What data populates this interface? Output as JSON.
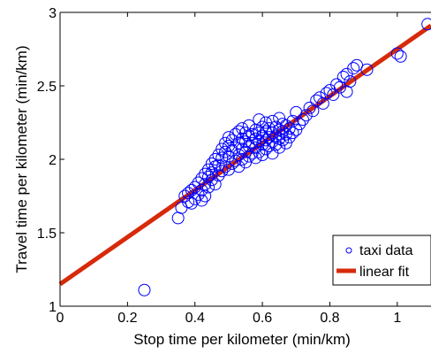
{
  "chart_data": {
    "type": "scatter",
    "xlabel": "Stop time per kilometer (min/km)",
    "ylabel": "Travel time per kilometer (min/km)",
    "xlim": [
      0,
      1.1
    ],
    "ylim": [
      1,
      3
    ],
    "xticks": [
      0,
      0.2,
      0.4,
      0.6,
      0.8,
      1
    ],
    "xtick_labels": [
      "0",
      "0.2",
      "0.4",
      "0.6",
      "0.8",
      "1"
    ],
    "yticks": [
      1,
      1.5,
      2,
      2.5,
      3
    ],
    "ytick_labels": [
      "1",
      "1.5",
      "2",
      "2.5",
      "3"
    ],
    "grid": false,
    "legend_position": "bottom-right",
    "series": [
      {
        "name": "taxi data",
        "type": "scatter",
        "color": "#0000ff",
        "marker": "open-circle",
        "points": [
          [
            0.25,
            1.11
          ],
          [
            0.35,
            1.6
          ],
          [
            0.36,
            1.67
          ],
          [
            0.37,
            1.75
          ],
          [
            0.38,
            1.71
          ],
          [
            0.38,
            1.77
          ],
          [
            0.39,
            1.7
          ],
          [
            0.39,
            1.79
          ],
          [
            0.4,
            1.73
          ],
          [
            0.4,
            1.81
          ],
          [
            0.41,
            1.76
          ],
          [
            0.41,
            1.84
          ],
          [
            0.42,
            1.72
          ],
          [
            0.42,
            1.79
          ],
          [
            0.42,
            1.87
          ],
          [
            0.43,
            1.75
          ],
          [
            0.43,
            1.83
          ],
          [
            0.43,
            1.9
          ],
          [
            0.44,
            1.81
          ],
          [
            0.44,
            1.88
          ],
          [
            0.44,
            1.93
          ],
          [
            0.45,
            1.86
          ],
          [
            0.45,
            1.91
          ],
          [
            0.45,
            1.97
          ],
          [
            0.46,
            1.83
          ],
          [
            0.46,
            1.95
          ],
          [
            0.46,
            2.0
          ],
          [
            0.47,
            1.89
          ],
          [
            0.47,
            1.96
          ],
          [
            0.47,
            2.03
          ],
          [
            0.48,
            1.92
          ],
          [
            0.48,
            2.01
          ],
          [
            0.48,
            2.07
          ],
          [
            0.49,
            1.95
          ],
          [
            0.49,
            2.05
          ],
          [
            0.49,
            2.11
          ],
          [
            0.5,
            1.93
          ],
          [
            0.5,
            2.02
          ],
          [
            0.5,
            2.09
          ],
          [
            0.5,
            2.15
          ],
          [
            0.51,
            1.97
          ],
          [
            0.51,
            2.06
          ],
          [
            0.51,
            2.13
          ],
          [
            0.52,
            1.99
          ],
          [
            0.52,
            2.08
          ],
          [
            0.52,
            2.17
          ],
          [
            0.53,
            1.95
          ],
          [
            0.53,
            2.03
          ],
          [
            0.53,
            2.11
          ],
          [
            0.53,
            2.19
          ],
          [
            0.54,
            2.0
          ],
          [
            0.54,
            2.07
          ],
          [
            0.54,
            2.14
          ],
          [
            0.54,
            2.21
          ],
          [
            0.55,
            1.98
          ],
          [
            0.55,
            2.05
          ],
          [
            0.55,
            2.12
          ],
          [
            0.55,
            2.18
          ],
          [
            0.56,
            2.02
          ],
          [
            0.56,
            2.09
          ],
          [
            0.56,
            2.16
          ],
          [
            0.56,
            2.23
          ],
          [
            0.57,
            2.04
          ],
          [
            0.57,
            2.11
          ],
          [
            0.57,
            2.17
          ],
          [
            0.58,
            2.01
          ],
          [
            0.58,
            2.08
          ],
          [
            0.58,
            2.14
          ],
          [
            0.58,
            2.2
          ],
          [
            0.59,
            2.05
          ],
          [
            0.59,
            2.12
          ],
          [
            0.59,
            2.18
          ],
          [
            0.59,
            2.27
          ],
          [
            0.6,
            2.03
          ],
          [
            0.6,
            2.1
          ],
          [
            0.6,
            2.16
          ],
          [
            0.6,
            2.22
          ],
          [
            0.61,
            2.07
          ],
          [
            0.61,
            2.13
          ],
          [
            0.61,
            2.19
          ],
          [
            0.61,
            2.25
          ],
          [
            0.62,
            2.09
          ],
          [
            0.62,
            2.15
          ],
          [
            0.62,
            2.21
          ],
          [
            0.63,
            2.04
          ],
          [
            0.63,
            2.12
          ],
          [
            0.63,
            2.18
          ],
          [
            0.63,
            2.26
          ],
          [
            0.64,
            2.1
          ],
          [
            0.64,
            2.16
          ],
          [
            0.64,
            2.22
          ],
          [
            0.65,
            2.08
          ],
          [
            0.65,
            2.14
          ],
          [
            0.65,
            2.2
          ],
          [
            0.65,
            2.28
          ],
          [
            0.66,
            2.13
          ],
          [
            0.66,
            2.19
          ],
          [
            0.66,
            2.24
          ],
          [
            0.67,
            2.11
          ],
          [
            0.67,
            2.17
          ],
          [
            0.67,
            2.23
          ],
          [
            0.68,
            2.15
          ],
          [
            0.68,
            2.21
          ],
          [
            0.69,
            2.18
          ],
          [
            0.69,
            2.26
          ],
          [
            0.7,
            2.2
          ],
          [
            0.7,
            2.32
          ],
          [
            0.71,
            2.24
          ],
          [
            0.72,
            2.27
          ],
          [
            0.73,
            2.3
          ],
          [
            0.74,
            2.35
          ],
          [
            0.75,
            2.33
          ],
          [
            0.76,
            2.4
          ],
          [
            0.77,
            2.42
          ],
          [
            0.78,
            2.38
          ],
          [
            0.79,
            2.45
          ],
          [
            0.8,
            2.47
          ],
          [
            0.81,
            2.44
          ],
          [
            0.82,
            2.51
          ],
          [
            0.83,
            2.49
          ],
          [
            0.84,
            2.56
          ],
          [
            0.85,
            2.58
          ],
          [
            0.85,
            2.46
          ],
          [
            0.86,
            2.53
          ],
          [
            0.87,
            2.62
          ],
          [
            0.88,
            2.64
          ],
          [
            0.91,
            2.61
          ],
          [
            1.0,
            2.72
          ],
          [
            1.01,
            2.7
          ],
          [
            1.09,
            2.92
          ]
        ]
      },
      {
        "name": "linear fit",
        "type": "line",
        "color": "#d62a0a",
        "x": [
          0,
          1.1
        ],
        "y": [
          1.15,
          2.91
        ]
      }
    ]
  }
}
